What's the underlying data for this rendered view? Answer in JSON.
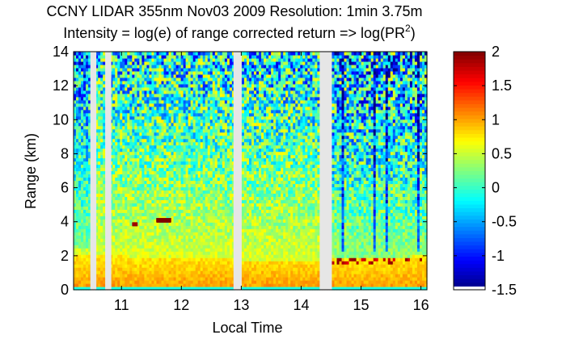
{
  "chart_data": {
    "type": "heatmap",
    "title_line1": "CCNY LIDAR 355nm Nov03 2009 Resolution: 1min 3.75m",
    "title_line2_main": "Intensity = log(e) of range corrected return => log(PR",
    "title_line2_sup": "2",
    "title_line2_end": ")",
    "xlabel": "Local Time",
    "ylabel": "Range (km)",
    "xlim": [
      10.2,
      16.1
    ],
    "ylim": [
      0,
      14
    ],
    "x_ticks": [
      11,
      12,
      13,
      14,
      15,
      16
    ],
    "y_ticks": [
      0,
      2,
      4,
      6,
      8,
      10,
      12,
      14
    ],
    "colorbar": {
      "colormap": "jet",
      "range": [
        -1.5,
        2
      ],
      "ticks": [
        -1.5,
        -1,
        -0.5,
        0,
        0.5,
        1,
        1.5,
        2
      ],
      "tick_labels": [
        "-1.5",
        "-1",
        "-0.5",
        "0",
        "0.5",
        "1",
        "1.5",
        "2"
      ]
    },
    "data_gaps_hours": [
      [
        10.48,
        10.58
      ],
      [
        10.73,
        10.83
      ],
      [
        12.87,
        13.0
      ],
      [
        14.33,
        14.5
      ]
    ],
    "cloud_layers": [
      {
        "x_start": 11.18,
        "x_end": 11.27,
        "altitude_km": 3.85,
        "value": 1.9
      },
      {
        "x_start": 11.58,
        "x_end": 11.83,
        "altitude_km": 4.1,
        "value": 2.0
      }
    ],
    "boundary_layer_top_km": [
      {
        "x": 10.2,
        "y": 2.1
      },
      {
        "x": 11.0,
        "y": 2.0
      },
      {
        "x": 12.0,
        "y": 1.9
      },
      {
        "x": 13.0,
        "y": 1.8
      },
      {
        "x": 14.0,
        "y": 1.7
      },
      {
        "x": 14.5,
        "y": 1.8
      },
      {
        "x": 15.0,
        "y": 1.9
      },
      {
        "x": 16.0,
        "y": 2.0
      }
    ]
  }
}
